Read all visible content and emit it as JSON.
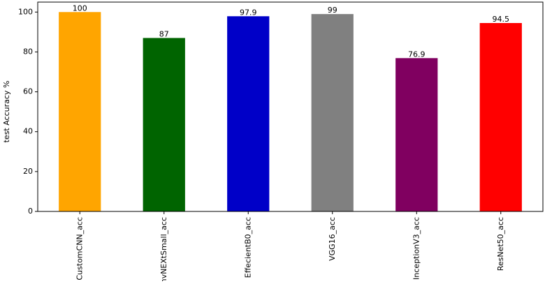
{
  "chart_data": {
    "type": "bar",
    "y_label": "test Accuracy %",
    "categories": [
      "CustomCNN_acc",
      "ConvNEXtSmall_acc",
      "EffecientB0_acc",
      "VGG16_acc",
      "InceptionV3_acc",
      "ResNet50_acc"
    ],
    "values": [
      100,
      87,
      97.9,
      99,
      76.9,
      94.5
    ],
    "colors": [
      "#ffa500",
      "#006400",
      "#0000c8",
      "#808080",
      "#800060",
      "#ff0000"
    ],
    "ylim": [
      0,
      105
    ],
    "yticks": [
      0,
      20,
      40,
      60,
      80,
      100
    ]
  }
}
